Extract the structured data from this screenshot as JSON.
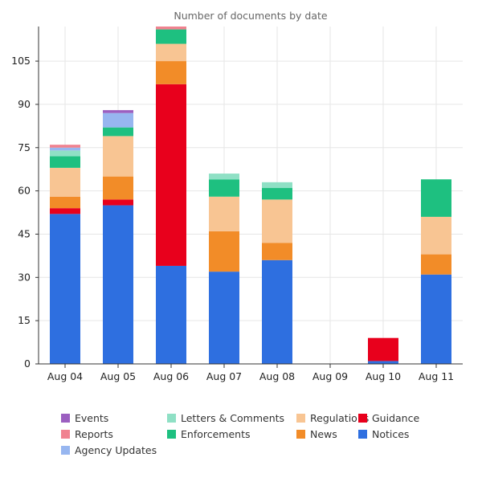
{
  "chart_data": {
    "type": "bar",
    "stacked": true,
    "title": "Number of documents by date",
    "xlabel": "",
    "ylabel": "",
    "ylim": [
      0,
      117
    ],
    "yticks": [
      0,
      15,
      30,
      45,
      60,
      75,
      90,
      105
    ],
    "grid": true,
    "legend_position": "bottom",
    "categories": [
      "Aug 04",
      "Aug 05",
      "Aug 06",
      "Aug 07",
      "Aug 08",
      "Aug 09",
      "Aug 10",
      "Aug 11"
    ],
    "series": [
      {
        "name": "Notices",
        "color": "#2e6fe0",
        "values": [
          52,
          55,
          34,
          32,
          36,
          0,
          1,
          31
        ]
      },
      {
        "name": "Guidance",
        "color": "#e8001c",
        "values": [
          2,
          2,
          63,
          0,
          0,
          0,
          8,
          0
        ]
      },
      {
        "name": "News",
        "color": "#f28c28",
        "values": [
          4,
          8,
          8,
          14,
          6,
          0,
          0,
          7
        ]
      },
      {
        "name": "Regulations",
        "color": "#f8c593",
        "values": [
          10,
          14,
          6,
          12,
          15,
          0,
          0,
          13
        ]
      },
      {
        "name": "Enforcements",
        "color": "#1ec080",
        "values": [
          4,
          3,
          5,
          6,
          4,
          0,
          0,
          13
        ]
      },
      {
        "name": "Letters & Comments",
        "color": "#8fe0c5",
        "values": [
          2,
          0,
          0,
          2,
          2,
          0,
          0,
          0
        ]
      },
      {
        "name": "Agency Updates",
        "color": "#97b6f0",
        "values": [
          1,
          5,
          0,
          0,
          0,
          0,
          0,
          0
        ]
      },
      {
        "name": "Reports",
        "color": "#f08290",
        "values": [
          1,
          0,
          2,
          0,
          0,
          0,
          0,
          0
        ]
      },
      {
        "name": "Events",
        "color": "#9b5fc0",
        "values": [
          0,
          1,
          0,
          0,
          0,
          0,
          0,
          0
        ]
      }
    ]
  },
  "legend": {
    "items": [
      {
        "label": "Events",
        "color": "#9b5fc0"
      },
      {
        "label": "Reports",
        "color": "#f08290"
      },
      {
        "label": "Agency Updates",
        "color": "#97b6f0"
      },
      {
        "label": "Letters & Comments",
        "color": "#8fe0c5"
      },
      {
        "label": "Enforcements",
        "color": "#1ec080"
      },
      {
        "label": "Regulations",
        "color": "#f8c593"
      },
      {
        "label": "News",
        "color": "#f28c28"
      },
      {
        "label": "Guidance",
        "color": "#e8001c"
      },
      {
        "label": "Notices",
        "color": "#2e6fe0"
      }
    ]
  }
}
